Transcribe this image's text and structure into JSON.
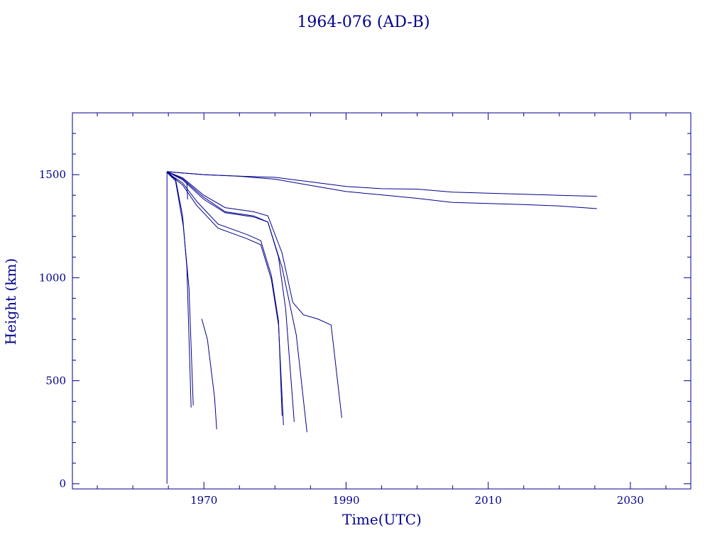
{
  "chart_data": {
    "type": "line",
    "title": "1964-076 (AD-B)",
    "xlabel": "Time(UTC)",
    "ylabel": "Height (km)",
    "xlim": [
      1951.5,
      2038.5
    ],
    "ylim": [
      -25,
      1800
    ],
    "x_major_ticks": [
      1970,
      1990,
      2010,
      2030
    ],
    "x_minor_step": 5,
    "y_major_ticks": [
      0,
      500,
      1000,
      1500
    ],
    "y_minor_step": 100,
    "x_tick_labels": [
      "1970",
      "1990",
      "2010",
      "2030"
    ],
    "y_tick_labels": [
      "0",
      "500",
      "1000",
      "1500"
    ],
    "grid": false,
    "color": "#00008b",
    "series": [
      {
        "x": [
          1964.8,
          1964.8
        ],
        "y": [
          1515,
          0
        ]
      },
      {
        "x": [
          1964.8,
          1966,
          1967,
          1967.6,
          1968.2
        ],
        "y": [
          1515,
          1480,
          1300,
          1050,
          370
        ]
      },
      {
        "x": [
          1964.8,
          1966,
          1967.1,
          1967.9,
          1968.5
        ],
        "y": [
          1510,
          1470,
          1250,
          950,
          380
        ]
      },
      {
        "x": [
          1967.6,
          1967.7
        ],
        "y": [
          1460,
          1380
        ]
      },
      {
        "x": [
          1969.7,
          1970.5,
          1971.5,
          1971.8
        ],
        "y": [
          800,
          700,
          420,
          265
        ]
      },
      {
        "x": [
          1964.8,
          1967,
          1969,
          1972,
          1976,
          1978,
          1979.5,
          1980.5,
          1981.2
        ],
        "y": [
          1510,
          1450,
          1350,
          1240,
          1190,
          1160,
          990,
          770,
          285
        ]
      },
      {
        "x": [
          1964.8,
          1967,
          1969,
          1972,
          1976,
          1978,
          1979.5,
          1980.5,
          1981
        ],
        "y": [
          1510,
          1460,
          1370,
          1260,
          1210,
          1180,
          1010,
          790,
          330
        ]
      },
      {
        "x": [
          1964.8,
          1967,
          1970,
          1973,
          1977,
          1979,
          1980.5,
          1981.5,
          1982.7
        ],
        "y": [
          1515,
          1475,
          1380,
          1315,
          1295,
          1270,
          1100,
          850,
          300
        ]
      },
      {
        "x": [
          1964.8,
          1967,
          1970,
          1973,
          1977,
          1979,
          1981,
          1983,
          1984.5
        ],
        "y": [
          1515,
          1480,
          1390,
          1320,
          1300,
          1270,
          1050,
          720,
          250
        ]
      },
      {
        "x": [
          1964.8,
          1967,
          1970,
          1973,
          1977,
          1979,
          1981,
          1982.5,
          1984,
          1986,
          1987.9,
          1989.4
        ],
        "y": [
          1515,
          1485,
          1400,
          1340,
          1320,
          1300,
          1120,
          880,
          820,
          800,
          770,
          320
        ]
      },
      {
        "x": [
          1964.8,
          1967,
          1970,
          1975,
          1980,
          1985,
          1990,
          1995,
          2000,
          2005,
          2010,
          2015,
          2020,
          2025.3
        ],
        "y": [
          1515,
          1508,
          1500,
          1493,
          1487,
          1465,
          1443,
          1432,
          1430,
          1415,
          1410,
          1405,
          1400,
          1395
        ]
      },
      {
        "x": [
          1964.8,
          1967,
          1970,
          1975,
          1980,
          1985,
          1990,
          1995,
          2000,
          2005,
          2010,
          2015,
          2020,
          2025.3
        ],
        "y": [
          1515,
          1508,
          1500,
          1492,
          1478,
          1448,
          1418,
          1402,
          1385,
          1365,
          1360,
          1355,
          1348,
          1335
        ]
      }
    ]
  }
}
